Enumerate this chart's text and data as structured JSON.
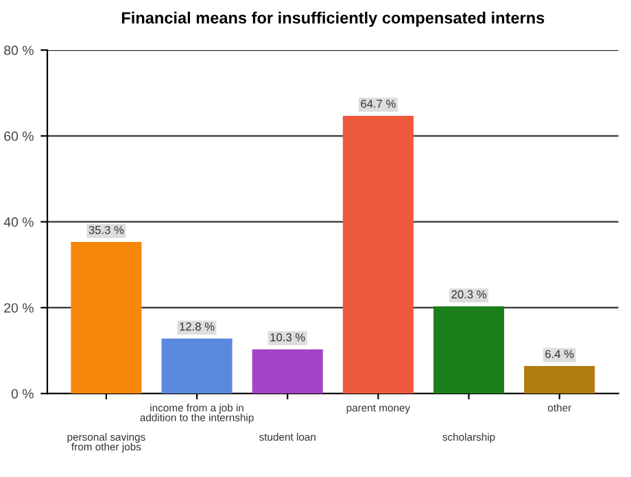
{
  "chart_data": {
    "type": "bar",
    "title": "Financial means for insufficiently compensated interns",
    "categories": [
      "personal savings\nfrom other jobs",
      "income from a job in\naddition to the internship",
      "student loan",
      "parent money",
      "scholarship",
      "other"
    ],
    "values": [
      35.3,
      12.8,
      10.3,
      64.7,
      20.3,
      6.4
    ],
    "colors": [
      "#f5870a",
      "#5a8ae0",
      "#a443c8",
      "#f05a3c",
      "#1a7f1a",
      "#b07d10"
    ],
    "value_labels": [
      "35.3 %",
      "12.8 %",
      "10.3 %",
      "64.7 %",
      "20.3 %",
      "6.4 %"
    ],
    "ylim": [
      0,
      80
    ],
    "yticks": [
      {
        "value": 0,
        "label": "0 %"
      },
      {
        "value": 20,
        "label": "20 %"
      },
      {
        "value": 40,
        "label": "40 %"
      },
      {
        "value": 60,
        "label": "60 %"
      },
      {
        "value": 80,
        "label": "80 %"
      }
    ],
    "grid": "y",
    "legend": false
  }
}
